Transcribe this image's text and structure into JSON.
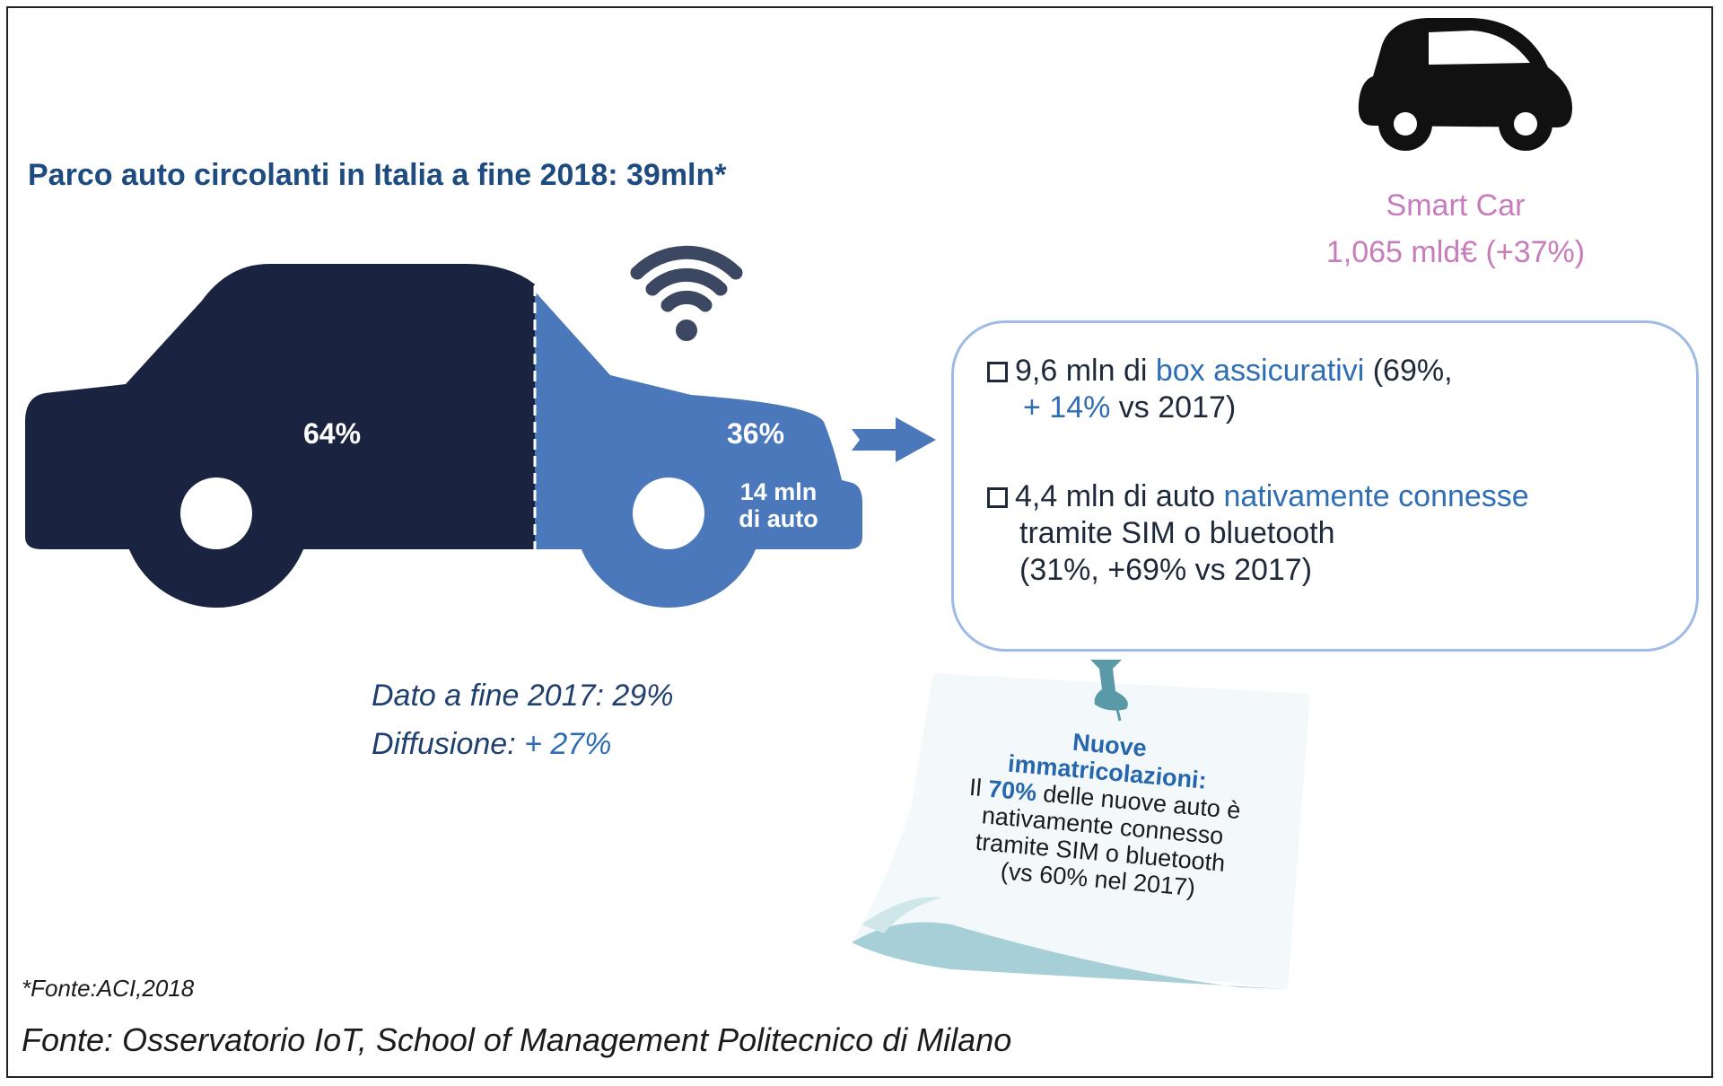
{
  "title": "Parco auto circolanti in Italia a fine 2018: 39mln*",
  "car": {
    "non_connected_pct": "64%",
    "connected_pct": "36%",
    "connected_count_line1": "14 mln",
    "connected_count_line2": "di auto",
    "share_non_connected": 64,
    "share_connected": 36,
    "colors": {
      "non_connected": "#1a2340",
      "connected": "#4a78bb"
    }
  },
  "smart_car": {
    "label": "Smart Car",
    "value": "1,065 mld€ (+37%)",
    "color": "#c77cbb"
  },
  "box": {
    "item1": {
      "a": "9,6 mln di ",
      "b": "box assicurativi",
      "c": " (69%,",
      "d": "+ 14%",
      "e": " vs 2017)"
    },
    "item2": {
      "a": "4,4 mln di auto ",
      "b": "nativamente connesse",
      "c": "tramite SIM o bluetooth",
      "d": "(31%, +69% vs 2017)"
    }
  },
  "dato": {
    "line1": "Dato a fine 2017: 29%",
    "line2_label": "Diffusione: ",
    "line2_value": "+ 27%"
  },
  "note": {
    "heading1": "Nuove",
    "heading2": "immatricolazioni:",
    "pre": "Il ",
    "pct": "70%",
    "post": " delle nuove auto è",
    "l2": "nativamente connesso",
    "l3": "tramite SIM o bluetooth",
    "l4": "(vs 60% nel 2017)"
  },
  "footnotes": {
    "aci": "*Fonte:ACI,2018",
    "source": "Fonte: Osservatorio IoT, School of Management Politecnico di Milano"
  }
}
